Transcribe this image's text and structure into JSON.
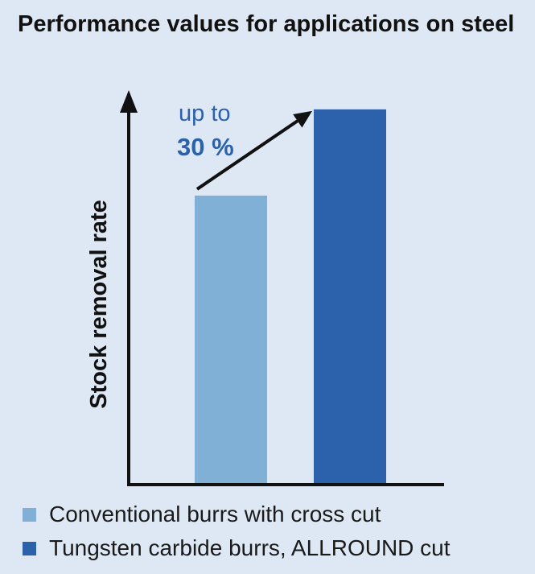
{
  "chart_data": {
    "type": "bar",
    "title": "Performance values for applications on steel",
    "ylabel": "Stock removal rate",
    "xlabel": "",
    "ylim": [
      0,
      135
    ],
    "categories": [
      "Conventional burrs with cross cut",
      "Tungsten carbide burrs, ALLROUND cut"
    ],
    "values": [
      100,
      130
    ],
    "colors": [
      "#80b0d6",
      "#2b62ab"
    ],
    "annotation": {
      "prefix": "up to",
      "value": "30 %"
    },
    "legend": [
      {
        "label": "Conventional burrs with cross cut",
        "color": "#80b0d6"
      },
      {
        "label": "Tungsten carbide burrs, ALLROUND cut",
        "color": "#2b62ab"
      }
    ],
    "legend_position": "bottom",
    "grid": false
  }
}
